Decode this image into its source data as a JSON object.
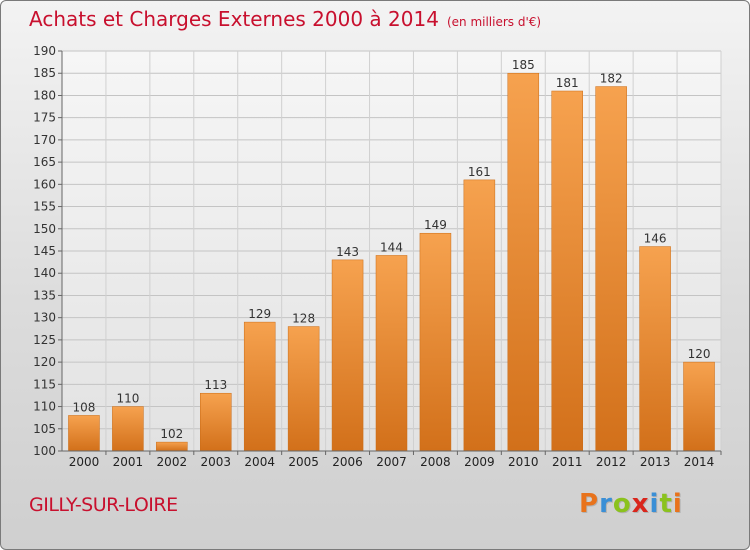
{
  "header": {
    "title": "Achats et Charges Externes 2000 à 2014",
    "unit": "(en milliers d'€)"
  },
  "footer": {
    "city": "GILLY-SUR-LOIRE",
    "brand_letters": [
      "P",
      "r",
      "o",
      "x",
      "i",
      "t",
      "i"
    ],
    "brand_colors": [
      "#e8731c",
      "#3a8fd6",
      "#8bc21e",
      "#d9261c",
      "#3a8fd6",
      "#8bc21e",
      "#e8731c"
    ]
  },
  "chart_data": {
    "type": "bar",
    "title": "Achats et Charges Externes 2000 à 2014",
    "subtitle": "(en milliers d'€)",
    "xlabel": "",
    "ylabel": "",
    "categories": [
      "2000",
      "2001",
      "2002",
      "2003",
      "2004",
      "2005",
      "2006",
      "2007",
      "2008",
      "2009",
      "2010",
      "2011",
      "2012",
      "2013",
      "2014"
    ],
    "values": [
      108,
      110,
      102,
      113,
      129,
      128,
      143,
      144,
      149,
      161,
      185,
      181,
      182,
      146,
      120
    ],
    "ylim": [
      100,
      190
    ],
    "yticks": [
      100,
      105,
      110,
      115,
      120,
      125,
      130,
      135,
      140,
      145,
      150,
      155,
      160,
      165,
      170,
      175,
      180,
      185,
      190
    ],
    "grid": true,
    "bar_color": "#f0953f",
    "bar_color_dark": "#c96b15"
  }
}
